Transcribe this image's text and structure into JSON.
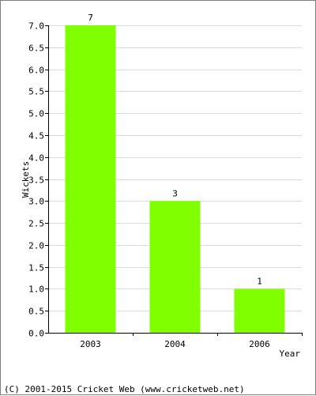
{
  "chart_data": {
    "type": "bar",
    "categories": [
      "2003",
      "2004",
      "2006"
    ],
    "values": [
      7,
      3,
      1
    ],
    "data_labels": [
      "7",
      "3",
      "1"
    ],
    "ylabel": "Wickets",
    "xlabel": "Year",
    "ylim": [
      0,
      7.0
    ],
    "yticks": [
      "0.0",
      "0.5",
      "1.0",
      "1.5",
      "2.0",
      "2.5",
      "3.0",
      "3.5",
      "4.0",
      "4.5",
      "5.0",
      "5.5",
      "6.0",
      "6.5",
      "7.0"
    ],
    "grid": true,
    "bar_color": "#80ff00",
    "grid_color": "#dcdcdc"
  },
  "footer": {
    "copyright": "(C) 2001-2015 Cricket Web (www.cricketweb.net)"
  }
}
